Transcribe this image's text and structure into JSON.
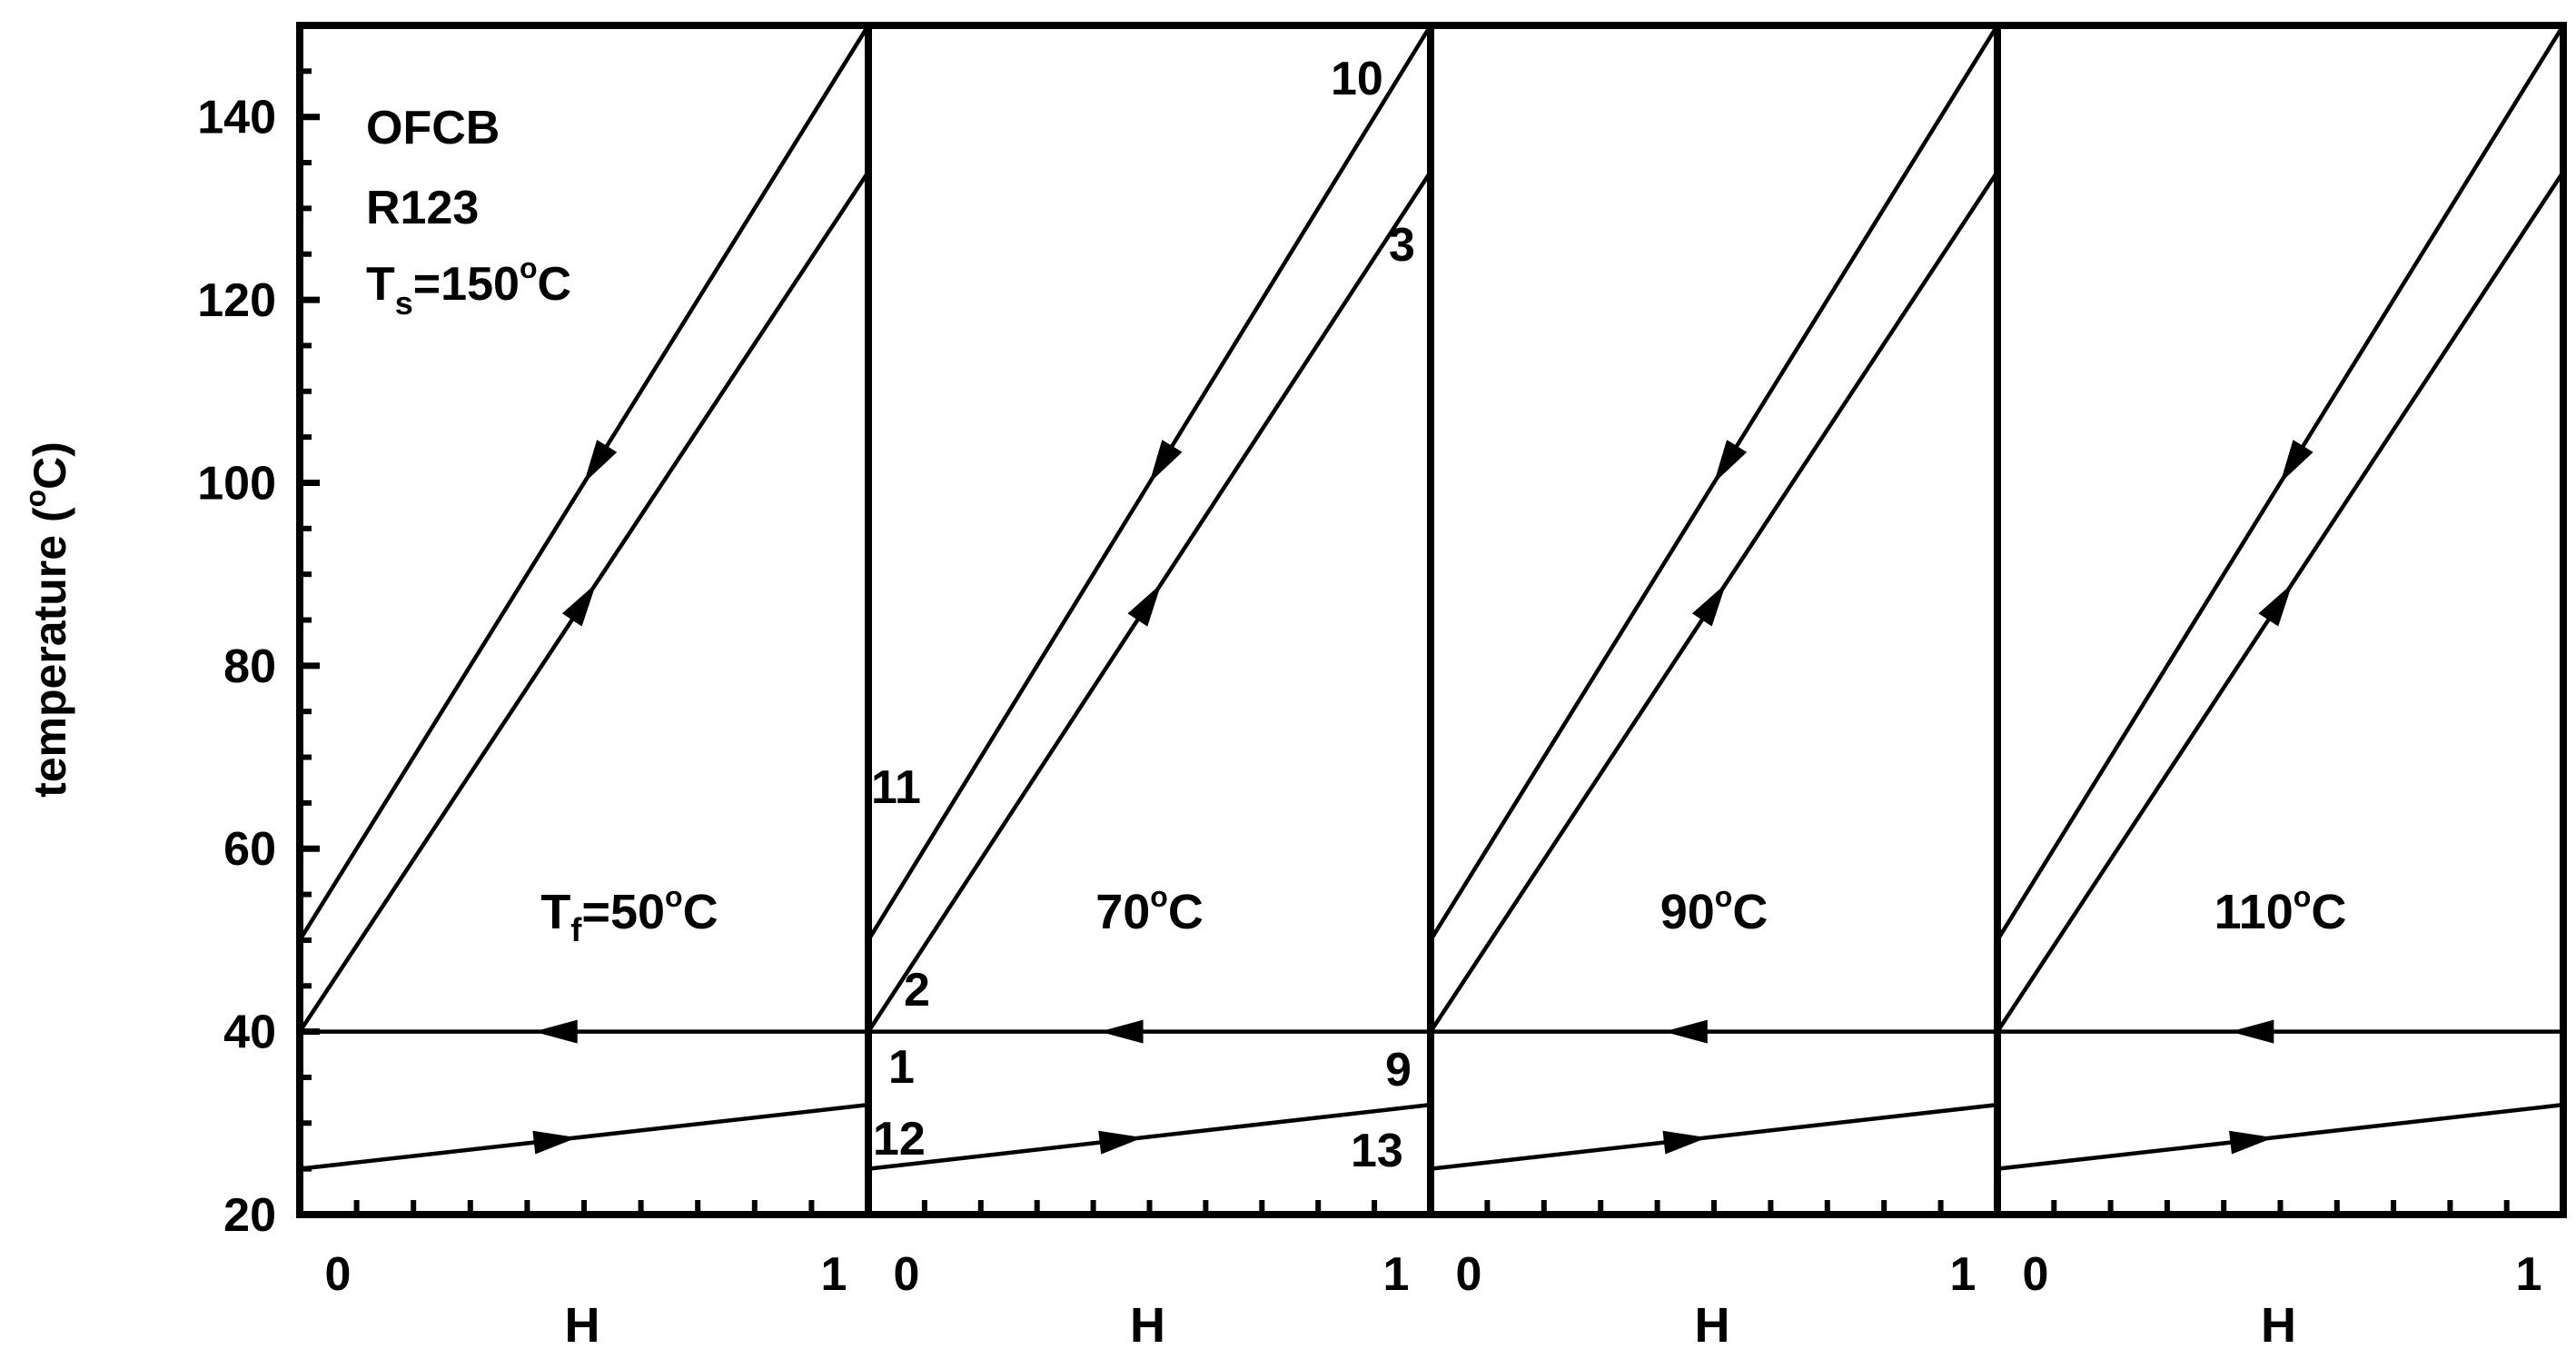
{
  "chart_data": {
    "type": "line",
    "ylabel_main": "temperature (",
    "ylabel_sup": "o",
    "ylabel_tail": "C)",
    "xlabel": "H",
    "ylim": [
      20,
      150
    ],
    "xlim": [
      0,
      1
    ],
    "y_ticks": [
      "20",
      "40",
      "60",
      "80",
      "100",
      "120",
      "140"
    ],
    "x_tick_labels": [
      "0",
      "1"
    ],
    "annotation": {
      "line1": "OFCB",
      "line2": "R123",
      "ts_main": "T",
      "ts_sub": "s",
      "ts_eq": "=150",
      "ts_sup": "o",
      "ts_unit": "C"
    },
    "panels": [
      {
        "label_prefix": "T",
        "label_sub": "f",
        "label_value": "=50",
        "label_sup": "o",
        "label_unit": "C"
      },
      {
        "label_prefix": "",
        "label_sub": "",
        "label_value": "70",
        "label_sup": "o",
        "label_unit": "C"
      },
      {
        "label_prefix": "",
        "label_sub": "",
        "label_value": "90",
        "label_sup": "o",
        "label_unit": "C"
      },
      {
        "label_prefix": "",
        "label_sub": "",
        "label_value": "110",
        "label_sup": "o",
        "label_unit": "C"
      }
    ],
    "state_points": [
      {
        "label": "10",
        "panel": 1
      },
      {
        "label": "3",
        "panel": 1
      },
      {
        "label": "11",
        "panel": 1
      },
      {
        "label": "2",
        "panel": 1
      },
      {
        "label": "1",
        "panel": 1
      },
      {
        "label": "12",
        "panel": 1
      },
      {
        "label": "9",
        "panel": 1
      },
      {
        "label": "13",
        "panel": 1
      }
    ],
    "series": [
      {
        "direction": "falling",
        "x": [
          0,
          1
        ],
        "y": [
          50,
          150
        ]
      },
      {
        "direction": "rising",
        "x": [
          0,
          1
        ],
        "y": [
          40,
          134
        ]
      },
      {
        "direction": "falling",
        "x": [
          0,
          1
        ],
        "y": [
          40,
          40
        ]
      },
      {
        "direction": "rising",
        "x": [
          0,
          1
        ],
        "y": [
          25,
          32
        ]
      }
    ],
    "grid": false
  }
}
